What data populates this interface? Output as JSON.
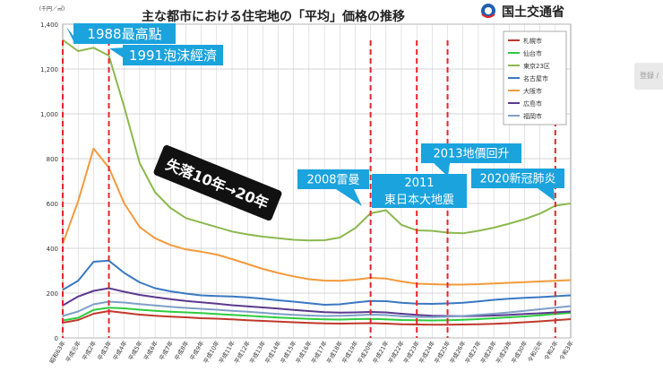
{
  "title": "主な都市における住宅地の「平均」価格の推移",
  "publisher": {
    "name": "国土交通省"
  },
  "side_tab": "登録 /",
  "colors": {
    "grid": "#c8c8c8",
    "axis": "#555555",
    "marker": "#e8242a",
    "callout_bg": "#1aa3dd",
    "callout_text": "#ffffff",
    "banner_bg": "#111111",
    "banner_text": "#ffffff"
  },
  "chart_data": {
    "type": "line",
    "yunit": "（千円／㎡）",
    "ylim": [
      0,
      1400
    ],
    "yticks": [
      0,
      200,
      400,
      600,
      800,
      1000,
      1200,
      1400
    ],
    "ytick_labels": [
      "0",
      "200",
      "400",
      "600",
      "800",
      "1,000",
      "1,200",
      "1,400"
    ],
    "grid": true,
    "legend_position": "top-right",
    "categories": [
      "昭和63年",
      "平成元年",
      "平成2年",
      "平成3年",
      "平成4年",
      "平成5年",
      "平成6年",
      "平成7年",
      "平成8年",
      "平成9年",
      "平成10年",
      "平成11年",
      "平成12年",
      "平成13年",
      "平成14年",
      "平成15年",
      "平成16年",
      "平成17年",
      "平成18年",
      "平成19年",
      "平成20年",
      "平成21年",
      "平成22年",
      "平成23年",
      "平成24年",
      "平成25年",
      "平成26年",
      "平成27年",
      "平成28年",
      "平成29年",
      "平成30年",
      "令和元年",
      "令和2年",
      "令和3年"
    ],
    "series": [
      {
        "name": "札幌市",
        "color": "#c0392b",
        "values": [
          68,
          80,
          108,
          120,
          112,
          104,
          99,
          95,
          92,
          88,
          86,
          83,
          79,
          76,
          73,
          70,
          67,
          65,
          64,
          65,
          66,
          64,
          61,
          60,
          59,
          59,
          60,
          61,
          63,
          66,
          70,
          74,
          79,
          84
        ]
      },
      {
        "name": "仙台市",
        "color": "#2ecc40",
        "values": [
          78,
          90,
          125,
          135,
          132,
          126,
          121,
          117,
          114,
          111,
          107,
          103,
          99,
          95,
          91,
          88,
          85,
          83,
          82,
          84,
          85,
          83,
          80,
          79,
          78,
          79,
          81,
          84,
          88,
          92,
          96,
          101,
          107,
          112
        ]
      },
      {
        "name": "東京23区",
        "color": "#8cb84f",
        "values": [
          1330,
          1280,
          1295,
          1260,
          1030,
          780,
          650,
          580,
          535,
          515,
          495,
          475,
          462,
          452,
          445,
          438,
          435,
          436,
          448,
          490,
          556,
          570,
          505,
          480,
          478,
          470,
          467,
          478,
          492,
          510,
          530,
          555,
          590,
          600
        ]
      },
      {
        "name": "名古屋市",
        "color": "#3a78c2",
        "values": [
          215,
          255,
          340,
          345,
          290,
          248,
          222,
          208,
          198,
          190,
          187,
          185,
          181,
          175,
          168,
          162,
          155,
          148,
          150,
          158,
          165,
          164,
          157,
          153,
          152,
          154,
          157,
          163,
          170,
          175,
          179,
          182,
          186,
          190
        ]
      },
      {
        "name": "大阪市",
        "color": "#f39a3c",
        "values": [
          420,
          610,
          845,
          760,
          600,
          495,
          445,
          415,
          395,
          385,
          372,
          352,
          330,
          308,
          290,
          275,
          262,
          256,
          255,
          260,
          268,
          265,
          252,
          242,
          240,
          238,
          238,
          240,
          243,
          246,
          249,
          252,
          255,
          258
        ]
      },
      {
        "name": "広島市",
        "color": "#5b3a8e",
        "values": [
          145,
          185,
          210,
          222,
          206,
          192,
          182,
          173,
          165,
          159,
          153,
          146,
          141,
          136,
          131,
          125,
          120,
          115,
          113,
          114,
          116,
          114,
          108,
          103,
          99,
          98,
          97,
          98,
          100,
          103,
          107,
          110,
          114,
          118
        ]
      },
      {
        "name": "福岡市",
        "color": "#7e9fc8",
        "values": [
          98,
          118,
          150,
          162,
          158,
          151,
          145,
          139,
          134,
          130,
          126,
          121,
          117,
          112,
          107,
          103,
          100,
          98,
          99,
          101,
          104,
          102,
          97,
          94,
          93,
          95,
          98,
          103,
          108,
          114,
          121,
          128,
          135,
          142
        ]
      }
    ],
    "markers": [
      {
        "index": 0
      },
      {
        "index": 3
      },
      {
        "index": 20
      },
      {
        "index": 23
      },
      {
        "index": 25
      },
      {
        "index": 32
      }
    ],
    "annotations": [
      {
        "id": "peak1988",
        "text": "1988最高點"
      },
      {
        "id": "bubble1991",
        "text": "1991泡沫經濟"
      },
      {
        "id": "lost",
        "text": "失落10年→20年"
      },
      {
        "id": "lehman2008",
        "text": "2008雷曼"
      },
      {
        "id": "quake2011",
        "lines": [
          "2011",
          "東日本大地震"
        ]
      },
      {
        "id": "recover2013",
        "text": "2013地價回升"
      },
      {
        "id": "covid2020",
        "text": "2020新冠肺炎"
      }
    ]
  }
}
